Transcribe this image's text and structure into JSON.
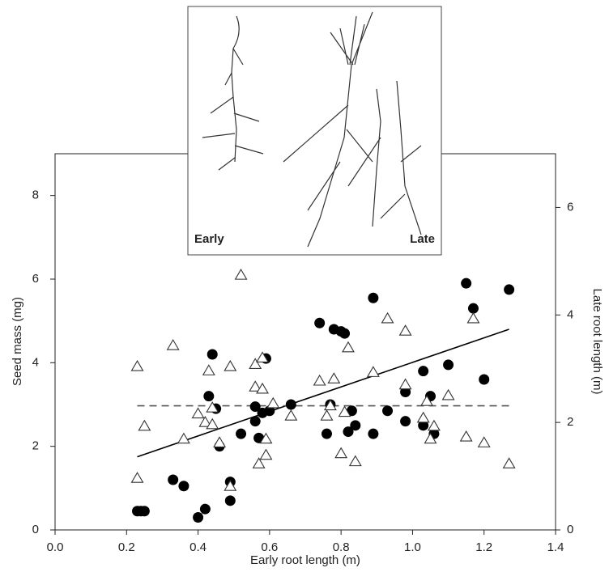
{
  "chart_data": {
    "type": "scatter",
    "x_label": "Early root length (m)",
    "y_label": "Seed mass (mg)",
    "y2_label": "Late root length (m)",
    "annotations": [
      "Early",
      "Late"
    ],
    "xlim": [
      0,
      1.4
    ],
    "xticks": [
      {
        "value": 0,
        "label": "0.0"
      },
      0.2,
      0.4,
      0.6,
      0.8,
      {
        "value": 1,
        "label": "1.0"
      },
      1.2,
      1.4
    ],
    "ylim": [
      0,
      9
    ],
    "yticks": [
      0,
      2,
      4,
      6,
      8
    ],
    "y2lim": [
      0,
      7
    ],
    "y2ticks": [
      0,
      2,
      4,
      6
    ],
    "series": [
      {
        "marker": "circle",
        "color": "#000000",
        "axis": "y",
        "x": [
          0.23,
          0.24,
          0.25,
          0.33,
          0.36,
          0.4,
          0.42,
          0.43,
          0.44,
          0.45,
          0.46,
          0.49,
          0.49,
          0.52,
          0.56,
          0.56,
          0.57,
          0.58,
          0.59,
          0.6,
          0.66,
          0.74,
          0.76,
          0.77,
          0.78,
          0.8,
          0.81,
          0.82,
          0.83,
          0.84,
          0.89,
          0.89,
          0.93,
          0.98,
          0.98,
          1.03,
          1.03,
          1.05,
          1.06,
          1.1,
          1.15,
          1.17,
          1.2,
          1.27
        ],
        "values": [
          0.45,
          0.45,
          0.45,
          1.2,
          1.05,
          0.3,
          0.5,
          3.2,
          4.2,
          2.9,
          2.0,
          0.7,
          1.15,
          2.3,
          2.6,
          2.95,
          2.2,
          2.8,
          4.1,
          2.85,
          3.0,
          4.95,
          2.3,
          3.0,
          4.8,
          4.75,
          4.7,
          2.35,
          2.85,
          2.5,
          2.3,
          5.55,
          2.85,
          3.3,
          2.6,
          2.5,
          3.8,
          3.2,
          2.3,
          3.95,
          5.9,
          5.3,
          3.6,
          5.75
        ]
      },
      {
        "marker": "triangle",
        "color": "#333333",
        "axis": "y2",
        "x": [
          0.23,
          0.23,
          0.25,
          0.33,
          0.36,
          0.4,
          0.42,
          0.43,
          0.44,
          0.44,
          0.46,
          0.49,
          0.49,
          0.52,
          0.56,
          0.56,
          0.57,
          0.58,
          0.58,
          0.59,
          0.59,
          0.61,
          0.66,
          0.74,
          0.76,
          0.77,
          0.78,
          0.8,
          0.81,
          0.82,
          0.84,
          0.89,
          0.93,
          0.98,
          0.98,
          1.03,
          1.04,
          1.05,
          1.06,
          1.1,
          1.15,
          1.17,
          1.2,
          1.27
        ],
        "values": [
          3.04,
          0.96,
          1.93,
          3.43,
          1.69,
          2.16,
          2.0,
          2.96,
          1.96,
          2.27,
          1.62,
          3.04,
          0.81,
          4.74,
          2.66,
          3.08,
          1.23,
          2.62,
          3.2,
          1.69,
          1.39,
          2.35,
          2.12,
          2.77,
          2.12,
          2.31,
          2.81,
          1.42,
          2.19,
          3.39,
          1.27,
          2.93,
          3.93,
          2.7,
          3.7,
          2.08,
          2.39,
          1.69,
          1.93,
          2.5,
          1.73,
          3.93,
          1.62,
          1.23
        ]
      }
    ],
    "trend_lines": [
      {
        "axis": "y",
        "dashed": false,
        "color": "#000000",
        "x": [
          0.23,
          1.27
        ],
        "values": [
          1.75,
          4.8
        ]
      },
      {
        "axis": "y2",
        "dashed": true,
        "color": "#555555",
        "x": [
          0.23,
          1.27
        ],
        "values": [
          2.31,
          2.31
        ]
      }
    ]
  }
}
